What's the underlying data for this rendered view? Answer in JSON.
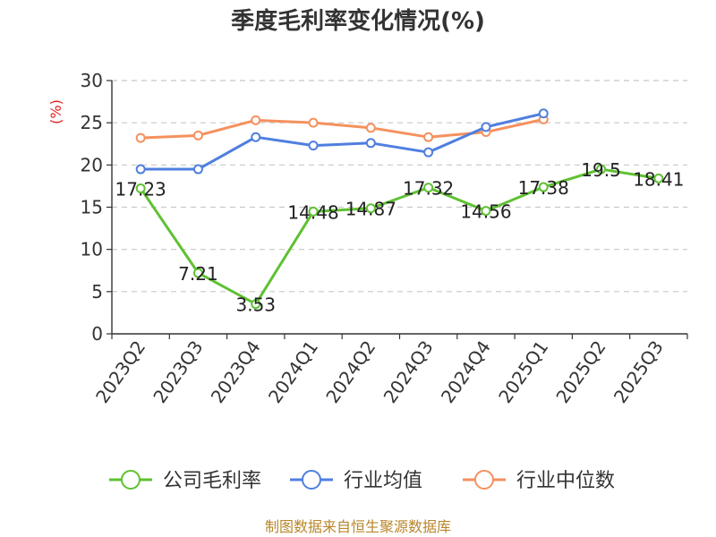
{
  "chart_data": {
    "type": "line",
    "title": "季度毛利率变化情况(%)",
    "unit_label": "(%)",
    "ylim": [
      0,
      30
    ],
    "yticks": [
      "0",
      "5",
      "10",
      "15",
      "20",
      "25",
      "30"
    ],
    "grid": true,
    "legend_position": "bottom",
    "categories": [
      "2023Q2",
      "2023Q3",
      "2023Q4",
      "2024Q1",
      "2024Q2",
      "2024Q3",
      "2024Q4",
      "2025Q1",
      "2025Q2",
      "2025Q3"
    ],
    "series": [
      {
        "name": "公司毛利率",
        "color": "#5fc132",
        "values": [
          17.23,
          7.21,
          3.53,
          14.48,
          14.87,
          17.32,
          14.56,
          17.38,
          19.5,
          18.41
        ],
        "labels": [
          "17.23",
          "7.21",
          "3.53",
          "14.48",
          "14.87",
          "17.32",
          "14.56",
          "17.38",
          "19.5",
          "18.41"
        ]
      },
      {
        "name": "行业均值",
        "color": "#4f7fdf",
        "values": [
          19.5,
          19.5,
          23.3,
          22.3,
          22.6,
          21.5,
          24.5,
          26.1,
          null,
          null
        ]
      },
      {
        "name": "行业中位数",
        "color": "#f5915e",
        "values": [
          23.2,
          23.5,
          25.3,
          25.0,
          24.4,
          23.3,
          23.9,
          25.4,
          null,
          null
        ]
      }
    ]
  },
  "source": "制图数据来自恒生聚源数据库"
}
